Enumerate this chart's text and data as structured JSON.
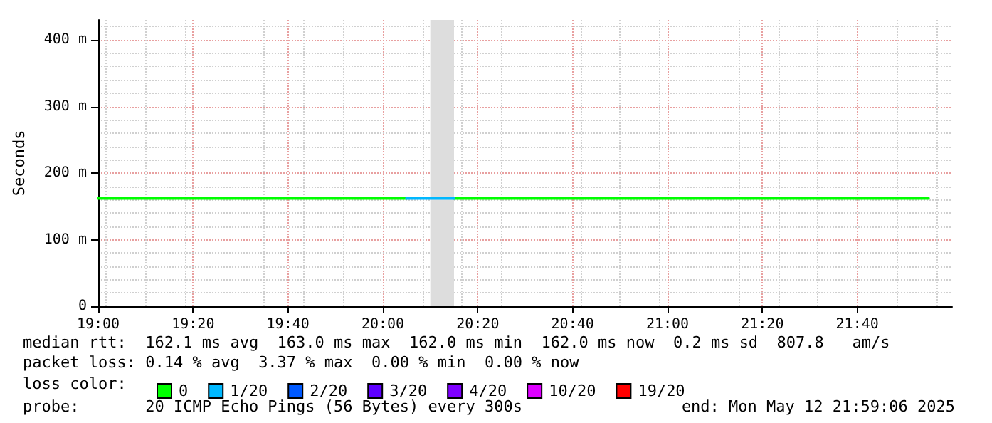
{
  "chart_data": {
    "type": "line",
    "ylabel": "Seconds",
    "legend_title": "loss color:",
    "xlim": [
      "2025-05-12T19:00",
      "2025-05-12T22:00"
    ],
    "xticks": [
      {
        "value": "2025-05-12T19:00",
        "label": "19:00"
      },
      {
        "value": "2025-05-12T19:20",
        "label": "19:20"
      },
      {
        "value": "2025-05-12T19:40",
        "label": "19:40"
      },
      {
        "value": "2025-05-12T20:00",
        "label": "20:00"
      },
      {
        "value": "2025-05-12T20:20",
        "label": "20:20"
      },
      {
        "value": "2025-05-12T20:40",
        "label": "20:40"
      },
      {
        "value": "2025-05-12T21:00",
        "label": "21:00"
      },
      {
        "value": "2025-05-12T21:20",
        "label": "21:20"
      },
      {
        "value": "2025-05-12T21:40",
        "label": "21:40"
      }
    ],
    "ylim": [
      0,
      430
    ],
    "yticks": [
      0,
      {
        "value": 100,
        "label": "100 m"
      },
      {
        "value": 200,
        "label": "200 m"
      },
      {
        "value": 300,
        "label": "300 m"
      },
      {
        "value": 400,
        "label": "400 m"
      }
    ],
    "grid": true,
    "legend": "bottom",
    "marker": "none",
    "line_style": "solid",
    "series": [
      {
        "name": "0",
        "color": "#00ff00",
        "x": [
          "2025-05-12T19:00",
          "2025-05-12T20:05",
          "2025-05-12T20:10",
          "2025-05-12T20:15",
          "2025-05-12T21:55"
        ],
        "values": [
          162,
          162,
          null,
          162,
          162
        ]
      },
      {
        "name": "1/20",
        "color": "#00b8ff",
        "x": [
          "2025-05-12T20:05",
          "2025-05-12T20:15"
        ],
        "values": [
          162,
          162
        ]
      },
      {
        "name": "2/20",
        "color": "#0059ff"
      },
      {
        "name": "3/20",
        "color": "#5e00ff"
      },
      {
        "name": "4/20",
        "color": "#7e00ff"
      },
      {
        "name": "10/20",
        "color": "#dd00ff"
      },
      {
        "name": "19/20",
        "color": "#ff0000"
      }
    ],
    "bands": [
      {
        "axis": "x",
        "from": "2025-05-12T20:10",
        "to": "2025-05-12T20:15",
        "color": "#dddddd"
      }
    ],
    "annotations": [
      "median rtt:  162.1 ms avg  163.0 ms max  162.0 ms min  162.0 ms now  0.2 ms sd  807.8   am/s",
      "packet loss: 0.14 % avg  3.37 % max  0.00 % min  0.00 % now",
      "probe:       20 ICMP Echo Pings (56 Bytes) every 300s",
      "end: Mon May 12 21:59:06 2025"
    ]
  }
}
